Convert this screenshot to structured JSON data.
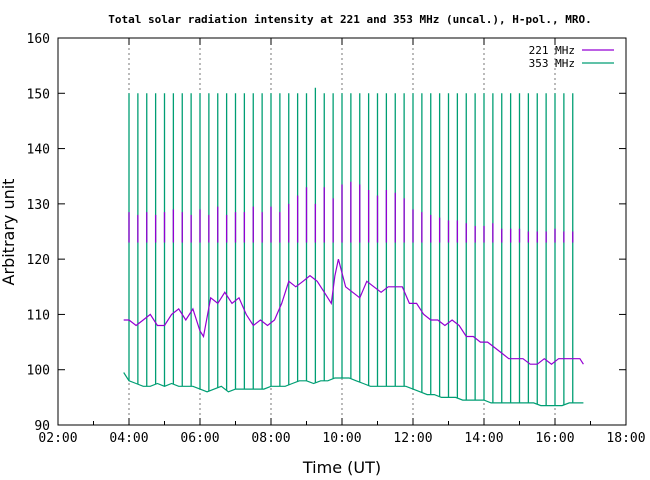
{
  "chart_data": {
    "type": "line",
    "title": "Total solar radiation intensity at 221 and 353 MHz (uncal.), H-pol., MRO.",
    "xlabel": "Time (UT)",
    "ylabel": "Arbitrary unit",
    "xlim": [
      2,
      18
    ],
    "ylim": [
      90,
      160
    ],
    "xticks": [
      {
        "value": 2,
        "label": "02:00"
      },
      {
        "value": 4,
        "label": "04:00"
      },
      {
        "value": 6,
        "label": "06:00"
      },
      {
        "value": 8,
        "label": "08:00"
      },
      {
        "value": 10,
        "label": "10:00"
      },
      {
        "value": 12,
        "label": "12:00"
      },
      {
        "value": 14,
        "label": "14:00"
      },
      {
        "value": 16,
        "label": "16:00"
      },
      {
        "value": 18,
        "label": "18:00"
      }
    ],
    "yticks": [
      {
        "value": 90,
        "label": "90"
      },
      {
        "value": 100,
        "label": "100"
      },
      {
        "value": 110,
        "label": "110"
      },
      {
        "value": 120,
        "label": "120"
      },
      {
        "value": 130,
        "label": "130"
      },
      {
        "value": 140,
        "label": "140"
      },
      {
        "value": 150,
        "label": "150"
      },
      {
        "value": 160,
        "label": "160"
      }
    ],
    "grid": {
      "vertical_dashed": [
        4,
        6,
        8,
        10,
        12,
        14,
        16
      ],
      "horizontal": false
    },
    "legend_position": "top-right",
    "series": [
      {
        "name": "221 MHz",
        "color": "#9400d3",
        "x": [
          3.85,
          4.0,
          4.2,
          4.4,
          4.6,
          4.8,
          5.0,
          5.2,
          5.4,
          5.6,
          5.8,
          6.0,
          6.1,
          6.3,
          6.5,
          6.7,
          6.9,
          7.1,
          7.3,
          7.5,
          7.7,
          7.9,
          8.1,
          8.3,
          8.5,
          8.7,
          8.9,
          9.1,
          9.3,
          9.5,
          9.7,
          9.8,
          9.9,
          10.1,
          10.3,
          10.5,
          10.7,
          10.9,
          11.1,
          11.3,
          11.5,
          11.7,
          11.9,
          12.1,
          12.3,
          12.5,
          12.7,
          12.9,
          13.1,
          13.3,
          13.5,
          13.7,
          13.9,
          14.1,
          14.3,
          14.5,
          14.7,
          14.9,
          15.1,
          15.3,
          15.5,
          15.7,
          15.9,
          16.1,
          16.3,
          16.5,
          16.7,
          16.8
        ],
        "y": [
          109,
          109,
          108,
          109,
          110,
          108,
          108,
          110,
          111,
          109,
          111,
          107,
          106,
          113,
          112,
          114,
          112,
          113,
          110,
          108,
          109,
          108,
          109,
          112,
          116,
          115,
          116,
          117,
          116,
          114,
          112,
          117,
          120,
          115,
          114,
          113,
          116,
          115,
          114,
          115,
          115,
          115,
          112,
          112,
          110,
          109,
          109,
          108,
          109,
          108,
          106,
          106,
          105,
          105,
          104,
          103,
          102,
          102,
          102,
          101,
          101,
          102,
          101,
          102,
          102,
          102,
          102,
          101
        ]
      },
      {
        "name": "353 MHz",
        "color": "#009e73",
        "x": [
          3.85,
          4.0,
          4.2,
          4.4,
          4.6,
          4.8,
          5.0,
          5.2,
          5.4,
          5.6,
          5.8,
          6.0,
          6.2,
          6.4,
          6.6,
          6.8,
          7.0,
          7.2,
          7.4,
          7.6,
          7.8,
          8.0,
          8.2,
          8.4,
          8.6,
          8.8,
          9.0,
          9.2,
          9.4,
          9.6,
          9.8,
          10.0,
          10.2,
          10.4,
          10.6,
          10.8,
          11.0,
          11.2,
          11.4,
          11.6,
          11.8,
          12.0,
          12.2,
          12.4,
          12.6,
          12.8,
          13.0,
          13.2,
          13.4,
          13.6,
          13.8,
          14.0,
          14.2,
          14.4,
          14.6,
          14.8,
          15.0,
          15.2,
          15.4,
          15.6,
          15.8,
          16.0,
          16.2,
          16.4,
          16.6,
          16.8
        ],
        "y": [
          99.5,
          98,
          97.5,
          97,
          97,
          97.5,
          97,
          97.5,
          97,
          97,
          97,
          96.5,
          96,
          96.5,
          97,
          96,
          96.5,
          96.5,
          96.5,
          96.5,
          96.5,
          97,
          97,
          97,
          97.5,
          98,
          98,
          97.5,
          98,
          98,
          98.5,
          98.5,
          98.5,
          98,
          97.5,
          97,
          97,
          97,
          97,
          97,
          97,
          96.5,
          96,
          95.5,
          95.5,
          95,
          95,
          95,
          94.5,
          94.5,
          94.5,
          94.5,
          94,
          94,
          94,
          94,
          94,
          94,
          94,
          93.5,
          93.5,
          93.5,
          93.5,
          94,
          94,
          94
        ]
      }
    ],
    "spikes": {
      "221 MHz": {
        "x": [
          4.0,
          4.25,
          4.5,
          4.75,
          5.0,
          5.25,
          5.5,
          5.75,
          6.0,
          6.25,
          6.5,
          6.75,
          7.0,
          7.25,
          7.5,
          7.75,
          8.0,
          8.25,
          8.5,
          8.75,
          9.0,
          9.25,
          9.5,
          9.75,
          10.0,
          10.25,
          10.5,
          10.75,
          11.0,
          11.25,
          11.5,
          11.75,
          12.0,
          12.25,
          12.5,
          12.75,
          13.0,
          13.25,
          13.5,
          13.75,
          14.0,
          14.25,
          14.5,
          14.75,
          15.0,
          15.25,
          15.5,
          15.75,
          16.0,
          16.25,
          16.5
        ],
        "top": [
          128.5,
          128,
          128.5,
          128,
          128.5,
          129,
          128.5,
          128,
          129,
          128,
          129.5,
          128,
          128.5,
          128.5,
          129.5,
          128.5,
          129.5,
          128.5,
          130,
          131.5,
          133,
          130,
          133,
          131,
          133.5,
          134,
          133.5,
          132.5,
          131.5,
          132.5,
          132,
          131,
          129,
          128.5,
          128,
          127.5,
          127,
          127,
          126.5,
          126,
          126,
          126.5,
          125.5,
          125.5,
          125.5,
          125,
          125,
          125,
          125.5,
          125,
          125
        ],
        "bottom": 123
      },
      "353 MHz": {
        "x": [
          4.0,
          4.25,
          4.5,
          4.75,
          5.0,
          5.25,
          5.5,
          5.75,
          6.0,
          6.25,
          6.5,
          6.75,
          7.0,
          7.25,
          7.5,
          7.75,
          8.0,
          8.25,
          8.5,
          8.75,
          9.0,
          9.25,
          9.5,
          9.75,
          10.0,
          10.25,
          10.5,
          10.75,
          11.0,
          11.25,
          11.5,
          11.75,
          12.0,
          12.25,
          12.5,
          12.75,
          13.0,
          13.25,
          13.5,
          13.75,
          14.0,
          14.25,
          14.5,
          14.75,
          15.0,
          15.25,
          15.5,
          15.75,
          16.0,
          16.25,
          16.5
        ],
        "top": [
          150,
          150,
          150,
          150,
          150,
          150,
          150,
          150,
          150,
          150,
          150,
          150,
          150,
          150,
          150,
          150,
          150,
          150,
          150,
          150,
          150,
          151,
          150,
          150,
          150,
          150,
          150,
          150,
          150,
          150,
          150,
          150,
          150,
          150,
          150,
          150,
          150,
          150,
          150,
          150,
          150,
          150,
          150,
          150,
          150,
          150,
          150,
          150,
          150,
          150,
          150
        ]
      }
    }
  }
}
